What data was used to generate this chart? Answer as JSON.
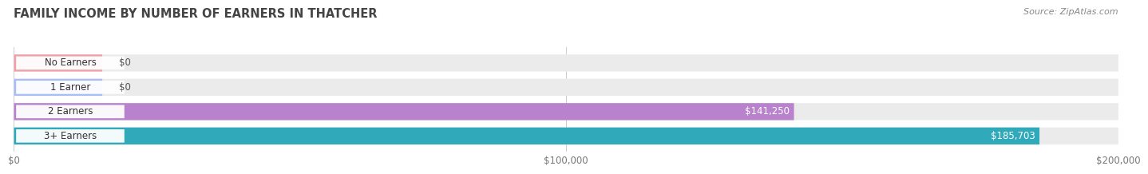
{
  "title": "FAMILY INCOME BY NUMBER OF EARNERS IN THATCHER",
  "source": "Source: ZipAtlas.com",
  "categories": [
    "No Earners",
    "1 Earner",
    "2 Earners",
    "3+ Earners"
  ],
  "values": [
    0,
    0,
    141250,
    185703
  ],
  "bar_colors": [
    "#f0a0a8",
    "#a8bef5",
    "#b882cc",
    "#30aaba"
  ],
  "value_labels": [
    "$0",
    "$0",
    "$141,250",
    "$185,703"
  ],
  "xlim": [
    0,
    200000
  ],
  "xticks": [
    0,
    100000,
    200000
  ],
  "xtick_labels": [
    "$0",
    "$100,000",
    "$200,000"
  ],
  "bg_color": "#ffffff",
  "bar_bg_color": "#ebebeb",
  "title_fontsize": 10.5,
  "source_fontsize": 8,
  "label_fontsize": 8.5,
  "value_fontsize": 8.5
}
